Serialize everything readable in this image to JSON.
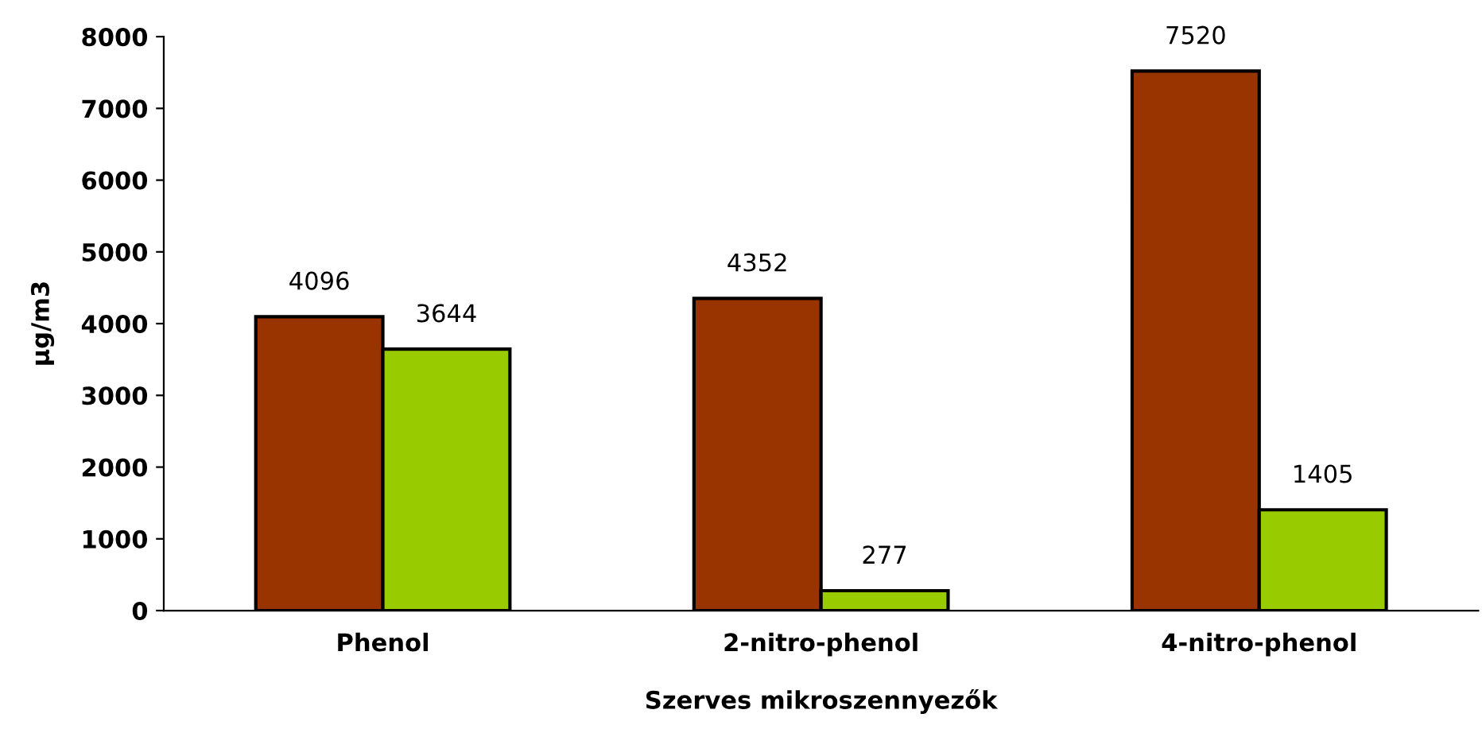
{
  "chart_data": {
    "type": "bar",
    "xlabel": "Szerves mikroszennyezők",
    "ylabel": "µg/m3",
    "categories": [
      "Phenol",
      "2-nitro-phenol",
      "4-nitro-phenol"
    ],
    "series": [
      {
        "color": "#993300",
        "values": [
          4096,
          4352,
          7520
        ]
      },
      {
        "color": "#99cc00",
        "values": [
          3644,
          277,
          1405
        ]
      }
    ],
    "ylim": [
      0,
      8000
    ],
    "yticks": [
      0,
      1000,
      2000,
      3000,
      4000,
      5000,
      6000,
      7000,
      8000
    ],
    "data_labels": true
  }
}
